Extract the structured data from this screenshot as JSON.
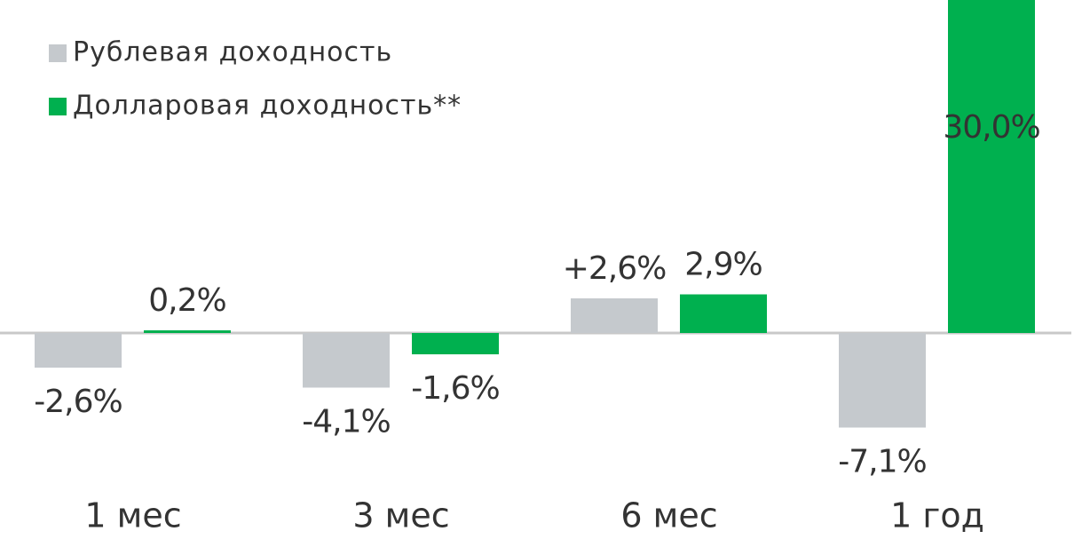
{
  "chart_data": {
    "type": "bar",
    "categories": [
      "1 мес",
      "3 мес",
      "6 мес",
      "1 год"
    ],
    "series": [
      {
        "name": "Рублевая  доходность",
        "color": "#c5c9cd",
        "values": [
          -2.6,
          -4.1,
          2.6,
          -7.1
        ],
        "value_labels": [
          "-2,6%",
          "-4,1%",
          "+2,6%",
          "-7,1%"
        ]
      },
      {
        "name": "Долларовая  доходность**",
        "color": "#00b04f",
        "values": [
          0.2,
          -1.6,
          2.9,
          30.0
        ],
        "value_labels": [
          "0,2%",
          "-1,6%",
          "2,9%",
          "30,0%"
        ]
      }
    ],
    "legend": "top-left"
  }
}
